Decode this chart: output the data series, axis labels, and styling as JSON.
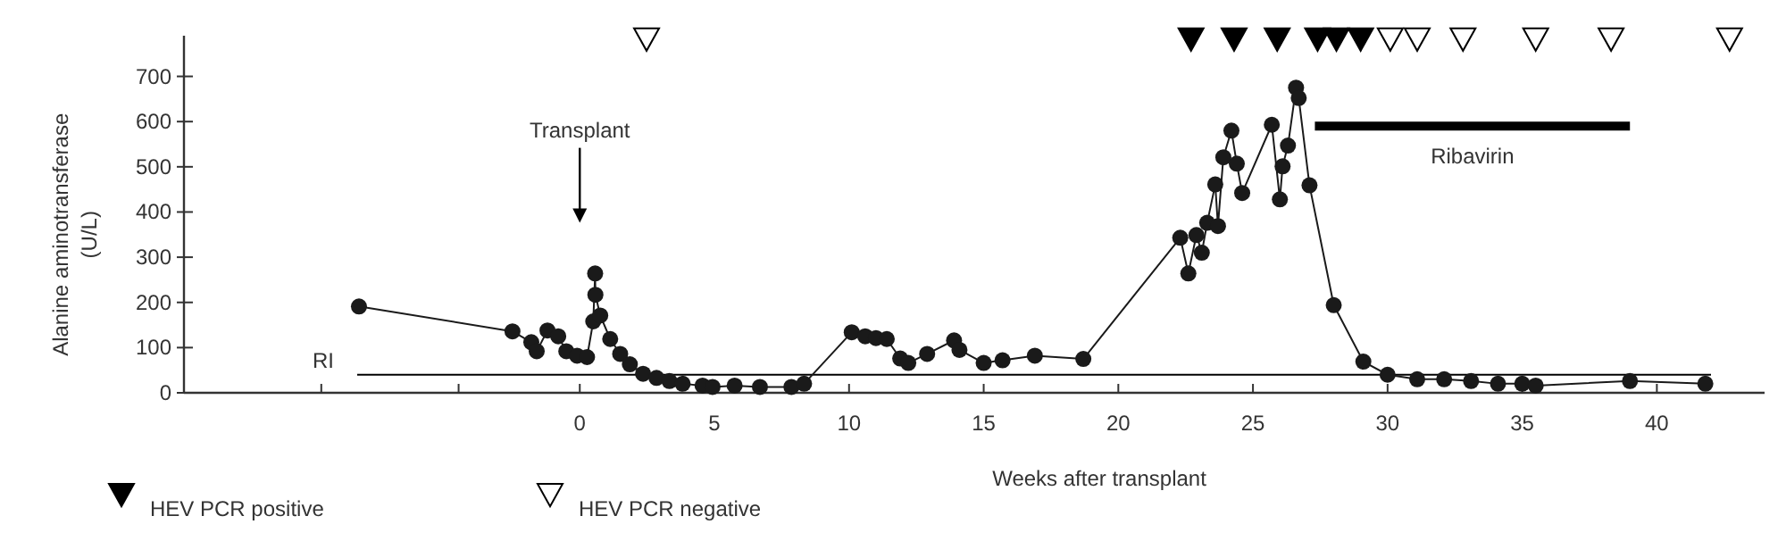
{
  "chart_data": {
    "type": "line",
    "xlabel": "Weeks after transplant",
    "ylabel": "Alanine aminotransferase\n(U/L)",
    "xlim": [
      -14.7,
      44
    ],
    "xticks": [
      {
        "value": -9.6,
        "label": null
      },
      {
        "value": -4.5,
        "label": null
      },
      0,
      5,
      10,
      15,
      20,
      25,
      30,
      35,
      40
    ],
    "ylim": [
      0,
      790
    ],
    "yticks": [
      0,
      100,
      200,
      300,
      400,
      500,
      600,
      700
    ],
    "marker": "circle",
    "grid": false,
    "legend": "bottom left",
    "series": [
      {
        "color": "#1a1a1a",
        "x": [
          -8.2,
          -2.5,
          -1.8,
          -1.6,
          -1.2,
          -0.8,
          -0.5,
          -0.1,
          0.27,
          0.5,
          0.57,
          0.58,
          0.76,
          1.13,
          1.5,
          1.86,
          2.35,
          2.85,
          3.33,
          3.82,
          4.56,
          4.93,
          5.75,
          6.69,
          7.86,
          8.33,
          10.1,
          10.6,
          11.0,
          11.4,
          11.9,
          12.2,
          12.9,
          13.9,
          14.1,
          15.0,
          15.7,
          16.9,
          18.7,
          22.3,
          22.6,
          22.9,
          23.1,
          23.3,
          23.6,
          23.7,
          23.9,
          24.2,
          24.4,
          24.6,
          25.7,
          26.0,
          26.1,
          26.3,
          26.6,
          26.7,
          27.1,
          28.0,
          29.1,
          30.0,
          31.1,
          32.1,
          33.1,
          34.1,
          35.0,
          35.5,
          39.0,
          41.8
        ],
        "values": [
          191,
          136,
          112,
          92,
          138,
          125,
          92,
          82,
          79,
          158,
          264,
          217,
          171,
          119,
          86,
          63,
          42,
          33,
          26,
          20,
          16,
          13,
          16,
          13,
          13,
          20,
          134,
          125,
          121,
          119,
          76,
          66,
          86,
          116,
          95,
          66,
          72,
          82,
          75,
          343,
          264,
          349,
          310,
          376,
          461,
          369,
          521,
          580,
          507,
          442,
          593,
          428,
          501,
          547,
          675,
          652,
          459,
          194,
          69,
          40,
          30,
          30,
          26,
          20,
          20,
          16,
          26,
          20
        ]
      },
      {
        "type": "line",
        "color": "#000000",
        "marker": "none",
        "x": [
          27.3,
          39.0
        ],
        "values": [
          590,
          590
        ]
      },
      {
        "type": "scatter",
        "name": "HEV PCR positive",
        "color": "#000000",
        "marker": "triangle",
        "x": [
          22.7,
          24.3,
          25.9,
          27.4,
          28.1,
          29.0
        ],
        "values": [
          783,
          783,
          783,
          783,
          783,
          783
        ]
      },
      {
        "type": "scatter",
        "name": "HEV PCR negative",
        "color": "#ffffff",
        "marker": "triangle",
        "x": [
          2.48,
          30.1,
          31.1,
          32.8,
          35.5,
          38.3,
          42.7
        ],
        "values": [
          783,
          783,
          783,
          783,
          783,
          783,
          783
        ]
      }
    ],
    "ref_lines": [
      {
        "axis": "y",
        "value": 40,
        "label": "RI",
        "color": "#000000"
      }
    ],
    "annotations": [
      "Transplant",
      {
        "text": "Ribavirin",
        "x": 33.15,
        "y": 590
      }
    ]
  }
}
